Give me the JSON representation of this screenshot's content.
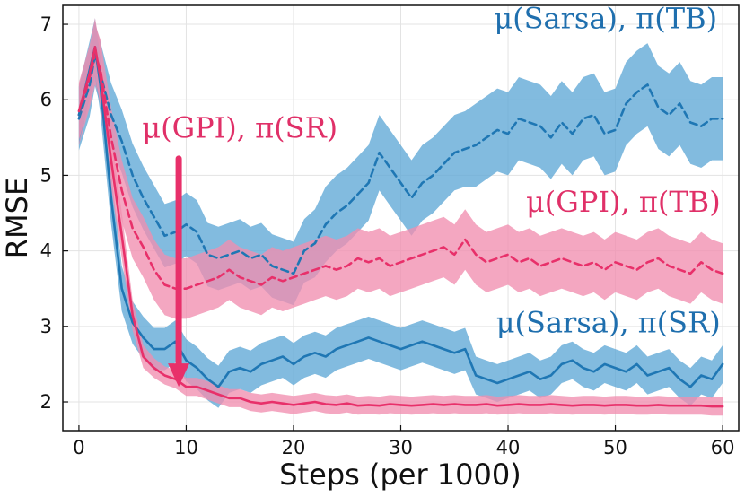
{
  "chart_data": {
    "type": "line",
    "xlabel": "Steps (per 1000)",
    "ylabel": "RMSE",
    "xlim": [
      -1.5,
      61.5
    ],
    "ylim": [
      1.62,
      7.25
    ],
    "xticks": [
      0,
      10,
      20,
      30,
      40,
      50,
      60
    ],
    "yticks": [
      2,
      3,
      4,
      5,
      6,
      7
    ],
    "grid": true,
    "colors": {
      "blue": "#1f77b4",
      "blue_band": "#5fa8d6",
      "pink": "#e8306a",
      "pink_band": "#f18eb0"
    },
    "annotations": [
      {
        "text": "μ(Sarsa), π(TB)",
        "color": "#1f6fae",
        "anchor": "end",
        "x": 59.5,
        "y": 6.95
      },
      {
        "text": "μ(GPI), π(SR)",
        "color": "#e03068",
        "anchor": "middle",
        "x": 15.0,
        "y": 5.5
      },
      {
        "text": "μ(GPI), π(TB)",
        "color": "#e03068",
        "anchor": "end",
        "x": 59.8,
        "y": 4.52
      },
      {
        "text": "μ(Sarsa), π(SR)",
        "color": "#1f6fae",
        "anchor": "end",
        "x": 59.8,
        "y": 2.92
      }
    ],
    "arrow": {
      "x": 9.3,
      "y_start": 5.22,
      "y_end": 2.2,
      "color": "#e8306a"
    },
    "series": [
      {
        "name": "μ(Sarsa), π(TB)",
        "color": "#1f77b4",
        "style": "dashed",
        "x": [
          0,
          1,
          1.5,
          2,
          3,
          4,
          5,
          6,
          7,
          8,
          9,
          10,
          11,
          12,
          13,
          14,
          15,
          16,
          17,
          18,
          19,
          20,
          21,
          22,
          23,
          24,
          25,
          26,
          27,
          28,
          29,
          30,
          31,
          32,
          33,
          34,
          35,
          36,
          37,
          38,
          39,
          40,
          41,
          42,
          43,
          44,
          45,
          46,
          47,
          48,
          49,
          50,
          51,
          52,
          53,
          54,
          55,
          56,
          57,
          58,
          59,
          60
        ],
        "y": [
          5.75,
          6.2,
          6.6,
          6.35,
          5.8,
          5.45,
          5.0,
          4.7,
          4.45,
          4.2,
          4.25,
          4.35,
          4.25,
          3.95,
          3.9,
          3.95,
          4.0,
          3.9,
          3.95,
          3.8,
          3.75,
          3.7,
          4.0,
          4.1,
          4.35,
          4.5,
          4.6,
          4.75,
          4.9,
          5.3,
          5.1,
          4.9,
          4.7,
          4.9,
          5.0,
          5.15,
          5.3,
          5.35,
          5.4,
          5.5,
          5.6,
          5.55,
          5.75,
          5.7,
          5.65,
          5.5,
          5.7,
          5.55,
          5.75,
          5.8,
          5.55,
          5.6,
          5.95,
          6.1,
          6.2,
          5.9,
          5.8,
          5.95,
          5.7,
          5.65,
          5.75,
          5.75
        ],
        "band": [
          0.42,
          0.42,
          0.42,
          0.42,
          0.42,
          0.42,
          0.42,
          0.42,
          0.42,
          0.42,
          0.42,
          0.42,
          0.42,
          0.42,
          0.42,
          0.42,
          0.42,
          0.42,
          0.42,
          0.42,
          0.42,
          0.42,
          0.42,
          0.45,
          0.5,
          0.5,
          0.5,
          0.5,
          0.5,
          0.5,
          0.5,
          0.5,
          0.5,
          0.5,
          0.5,
          0.5,
          0.5,
          0.5,
          0.55,
          0.55,
          0.55,
          0.55,
          0.55,
          0.55,
          0.55,
          0.55,
          0.55,
          0.55,
          0.55,
          0.55,
          0.55,
          0.55,
          0.55,
          0.55,
          0.55,
          0.55,
          0.55,
          0.55,
          0.55,
          0.55,
          0.55,
          0.55
        ]
      },
      {
        "name": "μ(GPI), π(TB)",
        "color": "#e8306a",
        "style": "dashed",
        "x": [
          0,
          1,
          1.5,
          2,
          3,
          4,
          5,
          6,
          7,
          8,
          9,
          10,
          11,
          12,
          13,
          14,
          15,
          16,
          17,
          18,
          19,
          20,
          21,
          22,
          23,
          24,
          25,
          26,
          27,
          28,
          29,
          30,
          31,
          32,
          33,
          34,
          35,
          36,
          37,
          38,
          39,
          40,
          41,
          42,
          43,
          44,
          45,
          46,
          47,
          48,
          49,
          50,
          51,
          52,
          53,
          54,
          55,
          56,
          57,
          58,
          59,
          60
        ],
        "y": [
          5.8,
          6.3,
          6.6,
          6.4,
          5.5,
          4.8,
          4.3,
          4.05,
          3.75,
          3.55,
          3.5,
          3.5,
          3.55,
          3.6,
          3.65,
          3.75,
          3.65,
          3.6,
          3.55,
          3.65,
          3.6,
          3.65,
          3.7,
          3.75,
          3.8,
          3.75,
          3.8,
          3.9,
          3.85,
          3.9,
          3.8,
          3.85,
          3.9,
          3.95,
          4.0,
          4.05,
          3.95,
          4.15,
          3.95,
          3.85,
          3.9,
          3.95,
          3.85,
          3.9,
          3.8,
          3.85,
          3.9,
          3.85,
          3.8,
          3.85,
          3.75,
          3.85,
          3.8,
          3.75,
          3.85,
          3.9,
          3.8,
          3.75,
          3.7,
          3.85,
          3.75,
          3.7
        ],
        "band": [
          0.4,
          0.4,
          0.4,
          0.4,
          0.4,
          0.4,
          0.4,
          0.4,
          0.4,
          0.4,
          0.4,
          0.4,
          0.4,
          0.4,
          0.4,
          0.4,
          0.4,
          0.4,
          0.4,
          0.4,
          0.4,
          0.4,
          0.4,
          0.4,
          0.4,
          0.4,
          0.4,
          0.4,
          0.4,
          0.4,
          0.4,
          0.4,
          0.4,
          0.4,
          0.4,
          0.4,
          0.4,
          0.4,
          0.4,
          0.4,
          0.4,
          0.4,
          0.4,
          0.4,
          0.4,
          0.4,
          0.4,
          0.4,
          0.4,
          0.4,
          0.4,
          0.4,
          0.4,
          0.4,
          0.4,
          0.4,
          0.4,
          0.4,
          0.4,
          0.4,
          0.4,
          0.4
        ]
      },
      {
        "name": "μ(Sarsa), π(SR)",
        "color": "#1f77b4",
        "style": "solid",
        "x": [
          0,
          1,
          1.5,
          2,
          3,
          4,
          5,
          6,
          7,
          8,
          9,
          10,
          11,
          12,
          13,
          14,
          15,
          16,
          17,
          18,
          19,
          20,
          21,
          22,
          23,
          24,
          25,
          26,
          27,
          28,
          29,
          30,
          31,
          32,
          33,
          34,
          35,
          36,
          37,
          38,
          39,
          40,
          41,
          42,
          43,
          44,
          45,
          46,
          47,
          48,
          49,
          50,
          51,
          52,
          53,
          54,
          55,
          56,
          57,
          58,
          59,
          60
        ],
        "y": [
          5.8,
          6.4,
          6.7,
          6.2,
          4.7,
          3.5,
          3.05,
          2.85,
          2.7,
          2.7,
          2.8,
          2.55,
          2.45,
          2.3,
          2.2,
          2.4,
          2.45,
          2.4,
          2.5,
          2.55,
          2.6,
          2.5,
          2.6,
          2.65,
          2.6,
          2.7,
          2.75,
          2.8,
          2.85,
          2.8,
          2.75,
          2.7,
          2.75,
          2.8,
          2.75,
          2.7,
          2.65,
          2.7,
          2.35,
          2.3,
          2.25,
          2.3,
          2.35,
          2.4,
          2.3,
          2.35,
          2.5,
          2.55,
          2.45,
          2.4,
          2.5,
          2.45,
          2.4,
          2.5,
          2.35,
          2.4,
          2.45,
          2.3,
          2.2,
          2.35,
          2.3,
          2.5
        ],
        "band": [
          0.38,
          0.38,
          0.38,
          0.38,
          0.35,
          0.3,
          0.28,
          0.28,
          0.28,
          0.28,
          0.28,
          0.28,
          0.28,
          0.28,
          0.28,
          0.28,
          0.28,
          0.28,
          0.28,
          0.28,
          0.28,
          0.28,
          0.28,
          0.28,
          0.28,
          0.28,
          0.28,
          0.28,
          0.28,
          0.28,
          0.28,
          0.28,
          0.28,
          0.28,
          0.28,
          0.28,
          0.28,
          0.28,
          0.25,
          0.25,
          0.25,
          0.25,
          0.25,
          0.25,
          0.25,
          0.25,
          0.25,
          0.25,
          0.25,
          0.25,
          0.25,
          0.25,
          0.25,
          0.25,
          0.25,
          0.25,
          0.25,
          0.25,
          0.25,
          0.25,
          0.25,
          0.25
        ]
      },
      {
        "name": "μ(GPI), π(SR)",
        "color": "#e8306a",
        "style": "solid",
        "x": [
          0,
          1,
          1.5,
          2,
          3,
          4,
          5,
          6,
          7,
          8,
          9,
          10,
          11,
          12,
          13,
          14,
          15,
          16,
          17,
          18,
          19,
          20,
          21,
          22,
          23,
          24,
          25,
          26,
          27,
          28,
          29,
          30,
          31,
          32,
          33,
          34,
          35,
          36,
          37,
          38,
          39,
          40,
          41,
          42,
          43,
          44,
          45,
          46,
          47,
          48,
          49,
          50,
          51,
          52,
          53,
          54,
          55,
          56,
          57,
          58,
          59,
          60
        ],
        "y": [
          5.85,
          6.35,
          6.7,
          6.3,
          5.2,
          4.2,
          3.15,
          2.6,
          2.45,
          2.35,
          2.3,
          2.2,
          2.2,
          2.15,
          2.1,
          2.05,
          2.05,
          2.0,
          1.98,
          2.0,
          1.98,
          1.96,
          1.98,
          2.0,
          1.97,
          1.96,
          1.98,
          1.95,
          1.96,
          1.95,
          1.97,
          1.96,
          1.95,
          1.96,
          1.97,
          1.96,
          1.97,
          1.96,
          1.96,
          1.97,
          1.95,
          1.96,
          1.97,
          1.96,
          1.96,
          1.97,
          1.96,
          1.95,
          1.96,
          1.96,
          1.95,
          1.96,
          1.96,
          1.95,
          1.95,
          1.96,
          1.95,
          1.95,
          1.95,
          1.95,
          1.94,
          1.94
        ],
        "band": [
          0.38,
          0.38,
          0.38,
          0.38,
          0.35,
          0.3,
          0.2,
          0.15,
          0.13,
          0.12,
          0.12,
          0.12,
          0.12,
          0.12,
          0.12,
          0.12,
          0.12,
          0.12,
          0.12,
          0.12,
          0.12,
          0.12,
          0.12,
          0.12,
          0.12,
          0.12,
          0.12,
          0.12,
          0.12,
          0.12,
          0.12,
          0.12,
          0.12,
          0.12,
          0.12,
          0.12,
          0.12,
          0.12,
          0.12,
          0.12,
          0.12,
          0.12,
          0.12,
          0.12,
          0.12,
          0.12,
          0.12,
          0.12,
          0.12,
          0.12,
          0.12,
          0.12,
          0.12,
          0.12,
          0.12,
          0.12,
          0.12,
          0.12,
          0.12,
          0.12,
          0.12,
          0.12
        ]
      }
    ]
  }
}
